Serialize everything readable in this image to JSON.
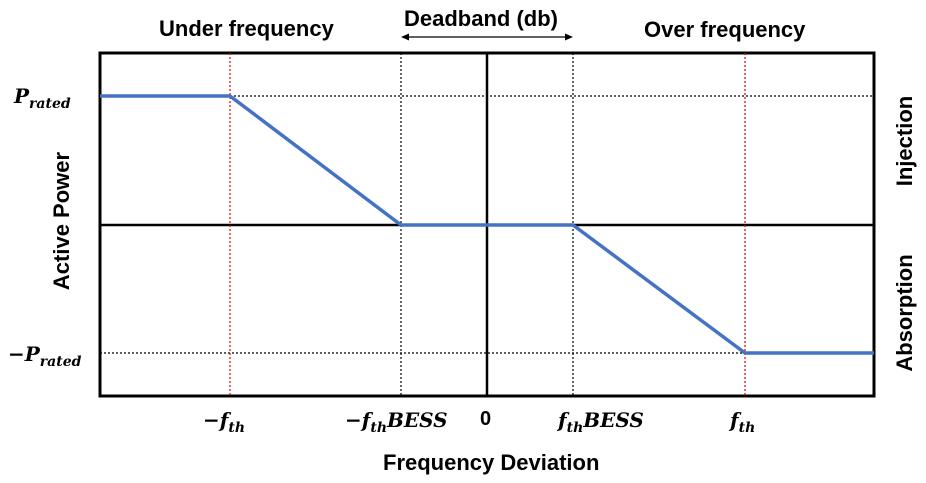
{
  "headers": {
    "under": "Under frequency",
    "deadband": "Deadband (db)",
    "over": "Over frequency"
  },
  "axes": {
    "ylabel": "Active Power",
    "xlabel": "Frequency Deviation",
    "right_top": "Injection",
    "right_bottom": "Absorption"
  },
  "y_ticks": {
    "prated_main": "P",
    "prated_sub": "rated",
    "neg_prated_main": "−P",
    "neg_prated_sub": "rated"
  },
  "x_ticks": {
    "neg_fth_main": "−f",
    "neg_fth_sub": "th",
    "neg_bess_main": "−f",
    "neg_bess_sub": "th",
    "neg_bess_tail": "BESS",
    "zero": "0",
    "pos_bess_main": "f",
    "pos_bess_sub": "th",
    "pos_bess_tail": "BESS",
    "pos_fth_main": "f",
    "pos_fth_sub": "th"
  },
  "colors": {
    "curve": "#4472c4",
    "threshold": "#e00000",
    "frame": "#000000"
  }
}
